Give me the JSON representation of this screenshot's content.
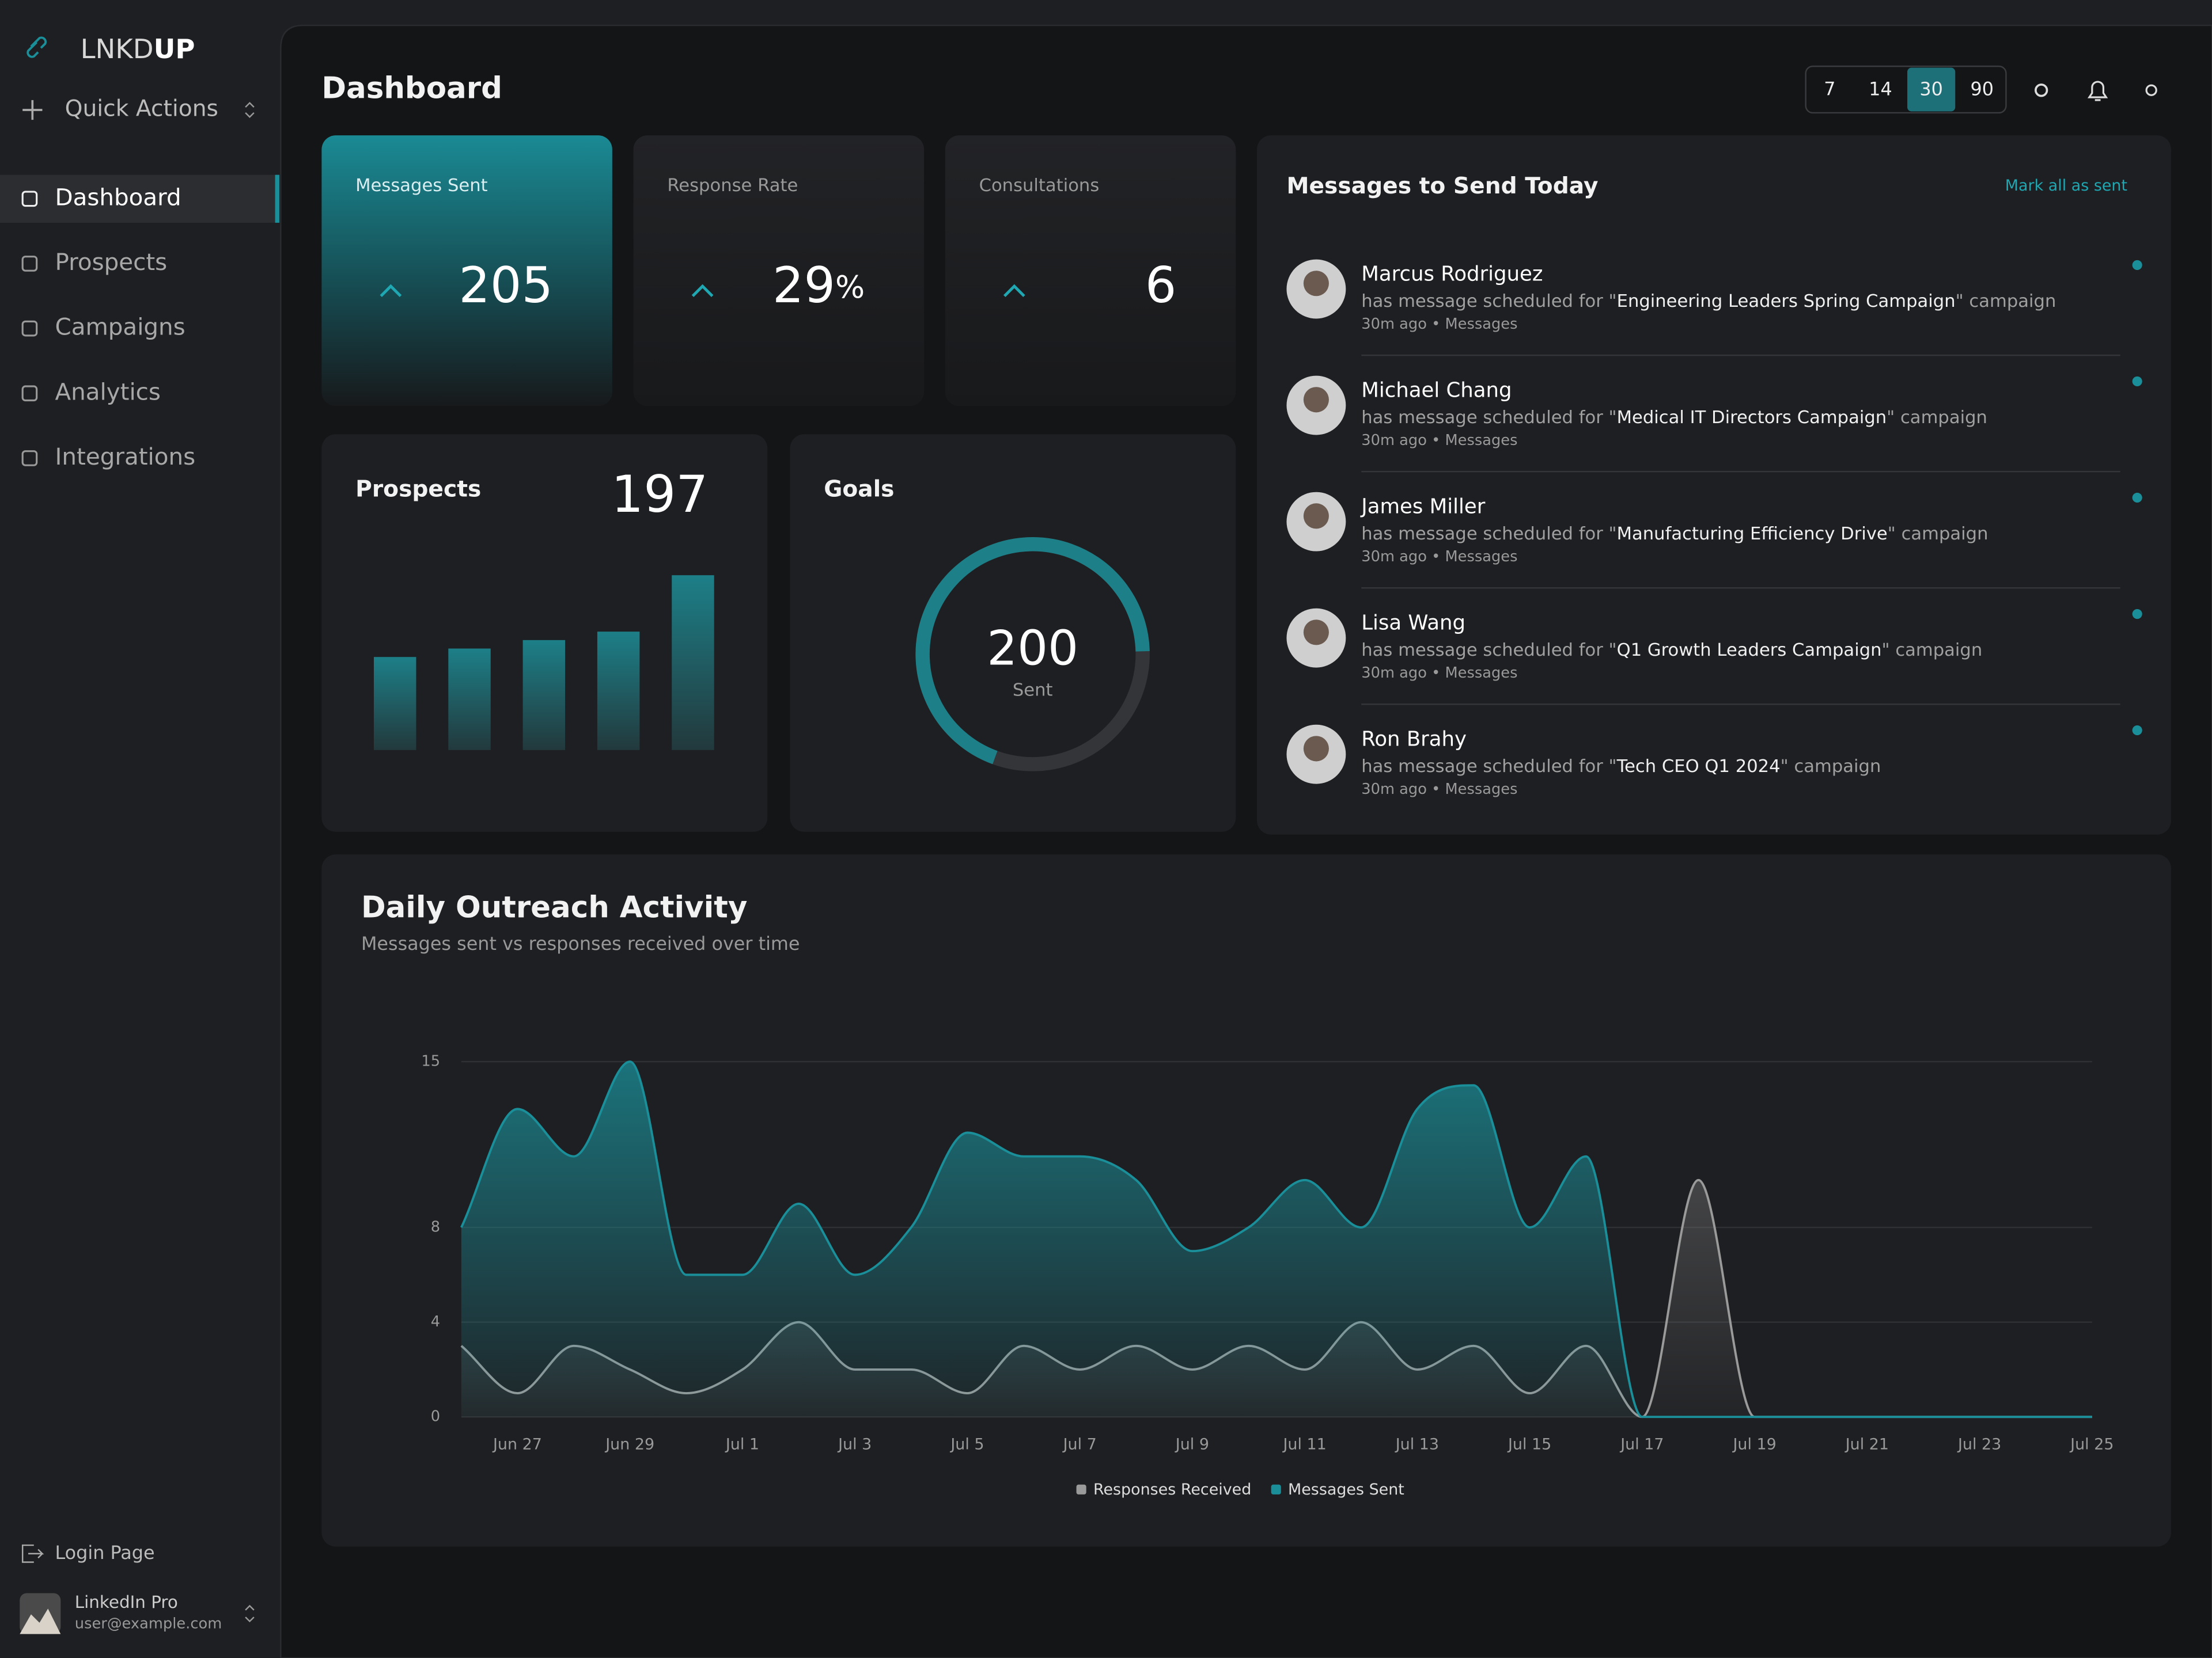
{
  "sidebar": {
    "brand_light": "LNKD",
    "brand_bold": "UP",
    "quick_actions": "Quick Actions",
    "nav": [
      "Dashboard",
      "Prospects",
      "Campaigns",
      "Analytics",
      "Integrations"
    ],
    "login": "Login Page",
    "user_name": "LinkedIn Pro",
    "user_email": "user@example.com"
  },
  "header": {
    "title": "Dashboard",
    "ranges": [
      7,
      14,
      30,
      90
    ],
    "selected": 30
  },
  "stats": [
    {
      "label": "Messages Sent",
      "value": 205
    },
    {
      "label": "Response Rate",
      "value": 29,
      "unit": "%"
    },
    {
      "label": "Consultations",
      "value": 6
    }
  ],
  "prospects": {
    "title": "Prospects",
    "total": 197
  },
  "goals": {
    "title": "Goals",
    "value": 200,
    "caption": "Sent",
    "percent": 69
  },
  "messages": {
    "title": "Messages to Send Today",
    "action": "Mark all as sent",
    "items": [
      {
        "name": "Marcus Rodriguez",
        "prefix": "has message scheduled for \"",
        "campaign": "Engineering Leaders Spring Campaign",
        "suffix": "\" campaign",
        "meta": "30m ago • Messages"
      },
      {
        "name": "Michael Chang",
        "prefix": "has message scheduled for \"",
        "campaign": "Medical IT Directors Campaign",
        "suffix": "\" campaign",
        "meta": "30m ago • Messages"
      },
      {
        "name": "James Miller",
        "prefix": "has message scheduled for \"",
        "campaign": "Manufacturing Efficiency Drive",
        "suffix": "\" campaign",
        "meta": "30m ago • Messages"
      },
      {
        "name": "Lisa Wang",
        "prefix": "has message scheduled for \"",
        "campaign": "Q1 Growth Leaders Campaign",
        "suffix": "\" campaign",
        "meta": "30m ago • Messages"
      },
      {
        "name": "Ron Brahy",
        "prefix": "has message scheduled for \"",
        "campaign": "Tech CEO Q1 2024",
        "suffix": "\" campaign",
        "meta": "30m ago • Messages"
      }
    ]
  },
  "chart_data": [
    {
      "type": "bar",
      "values": [
        66,
        72,
        78,
        84,
        124
      ],
      "ylim": [
        0,
        124
      ],
      "color": "#1d7f88"
    },
    {
      "type": "area",
      "title": "Daily Outreach Activity",
      "subtitle": "Messages sent vs responses received over time",
      "categories": [
        null,
        "Jun 27",
        null,
        "Jun 29",
        null,
        "Jul 1",
        null,
        "Jul 3",
        null,
        "Jul 5",
        null,
        "Jul 7",
        null,
        "Jul 9",
        null,
        "Jul 11",
        null,
        "Jul 13",
        null,
        "Jul 15",
        null,
        "Jul 17",
        null,
        "Jul 19",
        null,
        "Jul 21",
        null,
        "Jul 23",
        null,
        "Jul 25"
      ],
      "series": [
        {
          "name": "Responses Received",
          "color": "#9a9a9a",
          "values": [
            3,
            1,
            3,
            2,
            1,
            2,
            4,
            2,
            2,
            1,
            3,
            2,
            3,
            2,
            3,
            2,
            4,
            2,
            3,
            1,
            3,
            0,
            10,
            0,
            0,
            0,
            0,
            0,
            0,
            0
          ]
        },
        {
          "name": "Messages Sent",
          "color": "#1a8f99",
          "values": [
            8,
            13,
            11,
            15,
            6,
            6,
            9,
            6,
            8,
            12,
            11,
            11,
            10,
            7,
            8,
            10,
            8,
            13,
            14,
            8,
            11,
            0,
            0,
            0,
            0,
            0,
            0,
            0,
            0,
            0
          ]
        }
      ],
      "ylim": [
        0,
        15
      ],
      "yticks": [
        0,
        4,
        8,
        15
      ],
      "grid": true
    }
  ]
}
